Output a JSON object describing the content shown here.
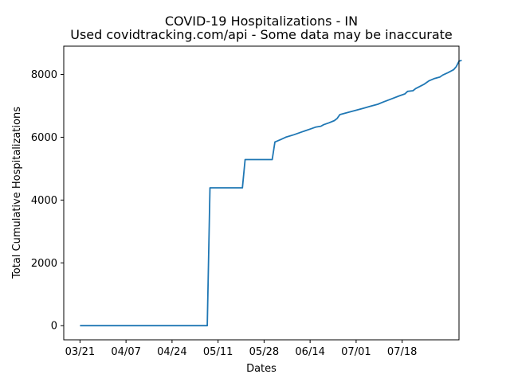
{
  "chart_data": {
    "type": "line",
    "title": "COVID-19 Hospitalizations - IN",
    "subtitle": "Used covidtracking.com/api - Some data may be inaccurate",
    "xlabel": "Dates",
    "ylabel": "Total Cumulative Hospitalizations",
    "x_tick_labels": [
      "03/21",
      "04/07",
      "04/24",
      "05/11",
      "05/28",
      "06/14",
      "07/01",
      "07/18"
    ],
    "y_ticks": [
      0,
      2000,
      4000,
      6000,
      8000
    ],
    "ylim": [
      -450,
      8900
    ],
    "xlim": [
      "2020-03-15",
      "2020-08-08"
    ],
    "grid": false,
    "line_color": "#1f77b4",
    "series": [
      {
        "points": [
          [
            "2020-03-21",
            0
          ],
          [
            "2020-05-07",
            0
          ],
          [
            "2020-05-08",
            4390
          ],
          [
            "2020-05-20",
            4390
          ],
          [
            "2020-05-21",
            5290
          ],
          [
            "2020-05-31",
            5290
          ],
          [
            "2020-06-01",
            5850
          ],
          [
            "2020-06-03",
            5920
          ],
          [
            "2020-06-05",
            6000
          ],
          [
            "2020-06-08",
            6080
          ],
          [
            "2020-06-11",
            6170
          ],
          [
            "2020-06-14",
            6260
          ],
          [
            "2020-06-16",
            6320
          ],
          [
            "2020-06-18",
            6350
          ],
          [
            "2020-06-19",
            6400
          ],
          [
            "2020-06-21",
            6460
          ],
          [
            "2020-06-23",
            6530
          ],
          [
            "2020-06-24",
            6600
          ],
          [
            "2020-06-25",
            6720
          ],
          [
            "2020-06-28",
            6790
          ],
          [
            "2020-07-01",
            6860
          ],
          [
            "2020-07-04",
            6930
          ],
          [
            "2020-07-06",
            6980
          ],
          [
            "2020-07-09",
            7050
          ],
          [
            "2020-07-11",
            7120
          ],
          [
            "2020-07-14",
            7220
          ],
          [
            "2020-07-17",
            7320
          ],
          [
            "2020-07-19",
            7380
          ],
          [
            "2020-07-20",
            7460
          ],
          [
            "2020-07-22",
            7480
          ],
          [
            "2020-07-23",
            7550
          ],
          [
            "2020-07-26",
            7680
          ],
          [
            "2020-07-28",
            7800
          ],
          [
            "2020-07-30",
            7870
          ],
          [
            "2020-08-01",
            7920
          ],
          [
            "2020-08-02",
            7980
          ],
          [
            "2020-08-04",
            8060
          ],
          [
            "2020-08-06",
            8150
          ],
          [
            "2020-08-07",
            8250
          ],
          [
            "2020-08-08",
            8420
          ],
          [
            "2020-08-09",
            8450
          ]
        ]
      }
    ]
  }
}
